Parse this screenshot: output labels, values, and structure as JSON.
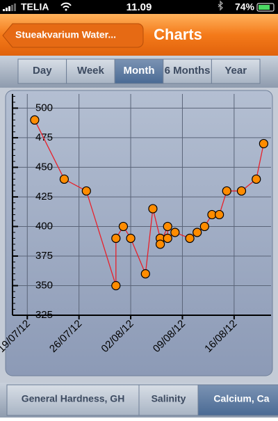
{
  "status_bar": {
    "carrier": "TELIA",
    "time": "11.09",
    "battery": "74%"
  },
  "nav": {
    "back": "Stueakvarium Water...",
    "title": "Charts"
  },
  "segments": {
    "items": [
      "Day",
      "Week",
      "Month",
      "6 Months",
      "Year"
    ],
    "selected": "Month"
  },
  "chart_data": {
    "type": "line",
    "color": "#e8202a",
    "marker_color": "#ff8c00",
    "grid": true,
    "x": [
      "20/07/12",
      "24/07/12",
      "27/07/12",
      "31/07/12",
      "31/07/12",
      "01/08/12",
      "02/08/12",
      "04/08/12",
      "05/08/12",
      "06/08/12",
      "06/08/12",
      "07/08/12",
      "07/08/12",
      "08/08/12",
      "10/08/12",
      "11/08/12",
      "12/08/12",
      "13/08/12",
      "14/08/12",
      "15/08/12",
      "17/08/12",
      "19/08/12",
      "20/08/12"
    ],
    "values": [
      490,
      440,
      430,
      350,
      390,
      400,
      390,
      360,
      415,
      390,
      385,
      400,
      390,
      395,
      390,
      395,
      400,
      410,
      410,
      430,
      430,
      440,
      470
    ],
    "xlim": [
      "17/07/12",
      "21/08/12"
    ],
    "xticks": [
      "19/07/12",
      "26/07/12",
      "02/08/12",
      "09/08/12",
      "16/08/12"
    ],
    "ylim": [
      325,
      512
    ],
    "yticks": [
      325,
      350,
      375,
      400,
      425,
      450,
      475,
      500
    ]
  },
  "tabs": {
    "items": [
      "General Hardness, GH",
      "Salinity",
      "Calcium, Ca"
    ],
    "selected": "Calcium, Ca"
  }
}
